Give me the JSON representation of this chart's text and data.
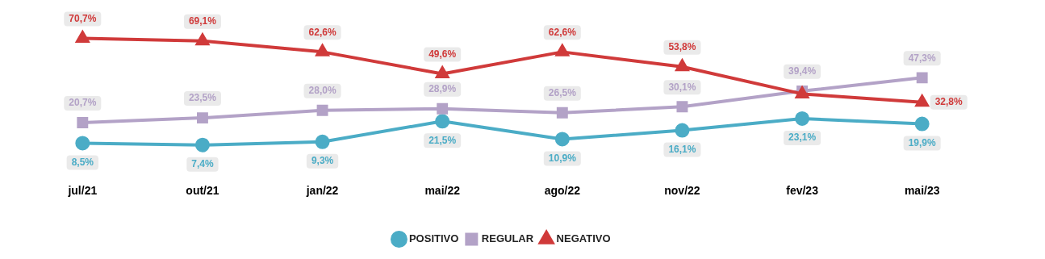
{
  "chart_data": {
    "type": "line",
    "categories": [
      "jul/21",
      "out/21",
      "jan/22",
      "mai/22",
      "ago/22",
      "nov/22",
      "fev/23",
      "mai/23"
    ],
    "series": [
      {
        "name": "POSITIVO",
        "color": "#4bacc6",
        "marker": "circle",
        "values": [
          8.5,
          7.4,
          9.3,
          21.5,
          10.9,
          16.1,
          23.1,
          19.9
        ],
        "value_labels": [
          "8,5%",
          "7,4%",
          "9,3%",
          "21,5%",
          "10,9%",
          "16,1%",
          "23,1%",
          "19,9%"
        ]
      },
      {
        "name": "REGULAR",
        "color": "#b3a2c7",
        "marker": "square",
        "values": [
          20.7,
          23.5,
          28.0,
          28.9,
          26.5,
          30.1,
          39.4,
          47.3
        ],
        "value_labels": [
          "20,7%",
          "23,5%",
          "28,0%",
          "28,9%",
          "26,5%",
          "30,1%",
          "39,4%",
          "47,3%"
        ]
      },
      {
        "name": "NEGATIVO",
        "color": "#d03a3a",
        "marker": "triangle",
        "values": [
          70.7,
          69.1,
          62.6,
          49.6,
          62.6,
          53.8,
          37.7,
          32.8
        ],
        "value_labels": [
          "70,7%",
          "69,1%",
          "62,6%",
          "49,6%",
          "62,6%",
          "53,8%",
          null,
          "32,8%"
        ]
      }
    ],
    "legend": "bottom",
    "grid": false,
    "tick_labels": "x"
  }
}
